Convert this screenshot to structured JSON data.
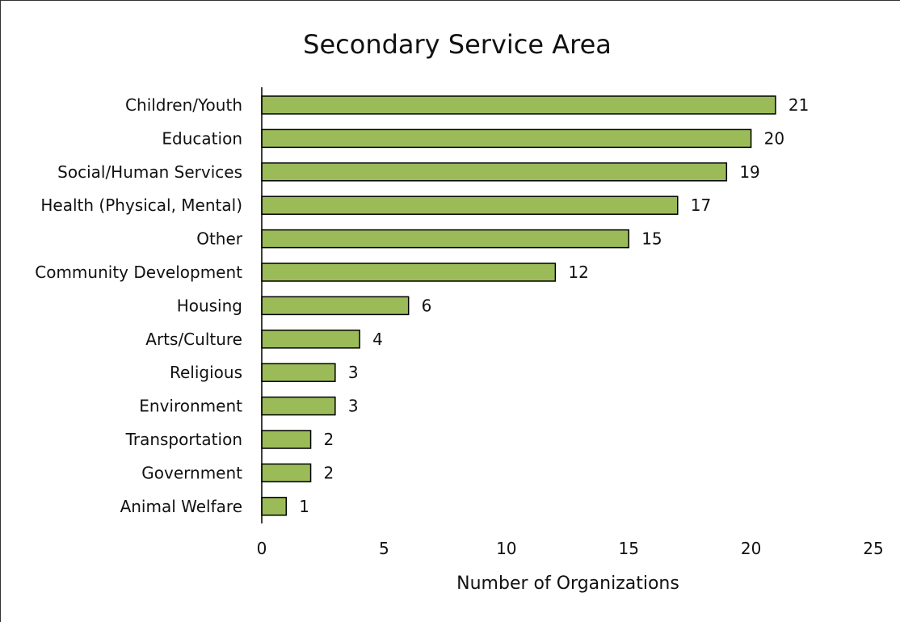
{
  "chart_data": {
    "type": "bar",
    "orientation": "horizontal",
    "title": "Secondary Service Area",
    "xlabel": "Number of Organizations",
    "ylabel": "",
    "xlim": [
      0,
      25
    ],
    "xticks": [
      0,
      5,
      10,
      15,
      20,
      25
    ],
    "grid": false,
    "categories": [
      "Children/Youth",
      "Education",
      "Social/Human Services",
      "Health (Physical, Mental)",
      "Other",
      "Community Development",
      "Housing",
      "Arts/Culture",
      "Religious",
      "Environment",
      "Transportation",
      "Government",
      "Animal Welfare"
    ],
    "values": [
      21,
      20,
      19,
      17,
      15,
      12,
      6,
      4,
      3,
      3,
      2,
      2,
      1
    ],
    "data_labels": true,
    "bar_color": "#9bbb59"
  }
}
